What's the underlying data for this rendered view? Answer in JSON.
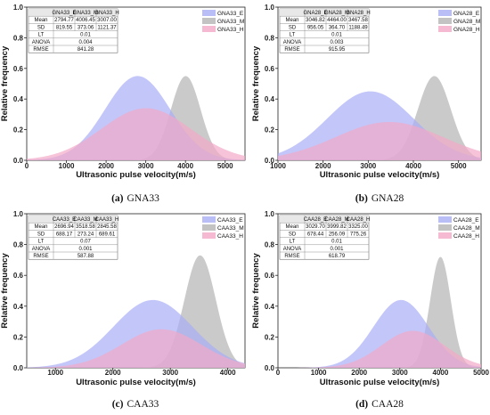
{
  "colors": {
    "E": "#a9aef5",
    "M": "#b4b4b4",
    "H": "#f2a9c7"
  },
  "chart_data": [
    {
      "type": "area",
      "caption_letter": "(a)",
      "caption_name": "GNA33",
      "xlabel": "Ultrasonic pulse velocity(m/s)",
      "ylabel": "Relative frequency",
      "xlim": [
        0,
        5500
      ],
      "ylim": [
        0.0,
        1.0
      ],
      "xticks": [
        "0",
        "1000",
        "2000",
        "3000",
        "4000",
        "5000"
      ],
      "yticks": [
        "0.0",
        "0.2",
        "0.4",
        "0.6",
        "0.8",
        "1.0"
      ],
      "table": {
        "headers": [
          "",
          "GNA33_E",
          "GNA33_M",
          "GNA33_H"
        ],
        "mean": [
          "Mean",
          "2794.77",
          "4006.45",
          "3007.00"
        ],
        "sd": [
          "SD",
          "819.55",
          "373.06",
          "1121.37"
        ],
        "lt": [
          "LT",
          "0.01"
        ],
        "anova": [
          "ANOVA",
          "0.004"
        ],
        "rmse": [
          "RMSE",
          "841.28"
        ]
      },
      "series": [
        {
          "name": "GNA33_E",
          "mean": 2794.77,
          "sd": 819.55,
          "peak": 0.55
        },
        {
          "name": "GNA33_M",
          "mean": 4006.45,
          "sd": 373.06,
          "peak": 0.55
        },
        {
          "name": "GNA33_H",
          "mean": 3007.0,
          "sd": 1121.37,
          "peak": 0.34
        }
      ]
    },
    {
      "type": "area",
      "caption_letter": "(b)",
      "caption_name": "GNA28",
      "xlabel": "Ultrasonic pulse velocity(m/s)",
      "ylabel": "Relative frequency",
      "xlim": [
        1000,
        5500
      ],
      "ylim": [
        0.0,
        1.0
      ],
      "xticks": [
        "1000",
        "2000",
        "3000",
        "4000",
        "5000"
      ],
      "yticks": [
        "0.0",
        "0.2",
        "0.4",
        "0.6",
        "0.8",
        "1.0"
      ],
      "table": {
        "headers": [
          "",
          "GNA28_E",
          "GNA28_M",
          "GNA28_H"
        ],
        "mean": [
          "Mean",
          "3046.82",
          "4464.00",
          "3467.58"
        ],
        "sd": [
          "SD",
          "956.05",
          "364.70",
          "1188.49"
        ],
        "lt": [
          "LT",
          "0.01"
        ],
        "anova": [
          "ANOVA",
          "0.003"
        ],
        "rmse": [
          "RMSE",
          "915.95"
        ]
      },
      "series": [
        {
          "name": "GNA28_E",
          "mean": 3046.82,
          "sd": 956.05,
          "peak": 0.45
        },
        {
          "name": "GNA28_M",
          "mean": 4464.0,
          "sd": 364.7,
          "peak": 0.55
        },
        {
          "name": "GNA28_H",
          "mean": 3467.58,
          "sd": 1188.49,
          "peak": 0.25
        }
      ]
    },
    {
      "type": "area",
      "caption_letter": "(c)",
      "caption_name": "CAA33",
      "xlabel": "Ultrasonic pulse velocity(m/s)",
      "ylabel": "Relative frequency",
      "xlim": [
        500,
        4300
      ],
      "ylim": [
        0.0,
        1.0
      ],
      "xticks": [
        "1000",
        "2000",
        "3000",
        "4000"
      ],
      "yticks": [
        "0.0",
        "0.2",
        "0.4",
        "0.6",
        "0.8",
        "1.0"
      ],
      "table": {
        "headers": [
          "",
          "CAA33_E",
          "CAA33_M",
          "CAA33_H"
        ],
        "mean": [
          "Mean",
          "2696.94",
          "3518.58",
          "2845.58"
        ],
        "sd": [
          "SD",
          "688.17",
          "273.24",
          "689.61"
        ],
        "lt": [
          "LT",
          "0.07"
        ],
        "anova": [
          "ANOVA",
          "0.001"
        ],
        "rmse": [
          "RMSE",
          "587.88"
        ]
      },
      "series": [
        {
          "name": "CAA33_E",
          "mean": 2696.94,
          "sd": 688.17,
          "peak": 0.44
        },
        {
          "name": "CAA33_M",
          "mean": 3518.58,
          "sd": 273.24,
          "peak": 0.73
        },
        {
          "name": "CAA33_H",
          "mean": 2845.58,
          "sd": 689.61,
          "peak": 0.25
        }
      ]
    },
    {
      "type": "area",
      "caption_letter": "(d)",
      "caption_name": "CAA28",
      "xlabel": "Ultrasonic pulse velocity(m/s)",
      "ylabel": "Relative frequency",
      "xlim": [
        0,
        5000
      ],
      "ylim": [
        0.0,
        1.0
      ],
      "xticks": [
        "0",
        "1000",
        "2000",
        "3000",
        "4000",
        "5000"
      ],
      "yticks": [
        "0.0",
        "0.2",
        "0.4",
        "0.6",
        "0.8",
        "1.0"
      ],
      "table": {
        "headers": [
          "",
          "CAA28_E",
          "CAA28_M",
          "CAA28_H"
        ],
        "mean": [
          "Mean",
          "3029.70",
          "3999.82",
          "3325.00"
        ],
        "sd": [
          "SD",
          "678.44",
          "256.09",
          "775.26"
        ],
        "lt": [
          "LT",
          "0.01"
        ],
        "anova": [
          "ANOVA",
          "0.001"
        ],
        "rmse": [
          "RMSE",
          "618.79"
        ]
      },
      "series": [
        {
          "name": "CAA28_E",
          "mean": 3029.7,
          "sd": 678.44,
          "peak": 0.44
        },
        {
          "name": "CAA28_M",
          "mean": 3999.82,
          "sd": 256.09,
          "peak": 0.72
        },
        {
          "name": "CAA28_H",
          "mean": 3325.0,
          "sd": 775.26,
          "peak": 0.24
        }
      ]
    }
  ]
}
